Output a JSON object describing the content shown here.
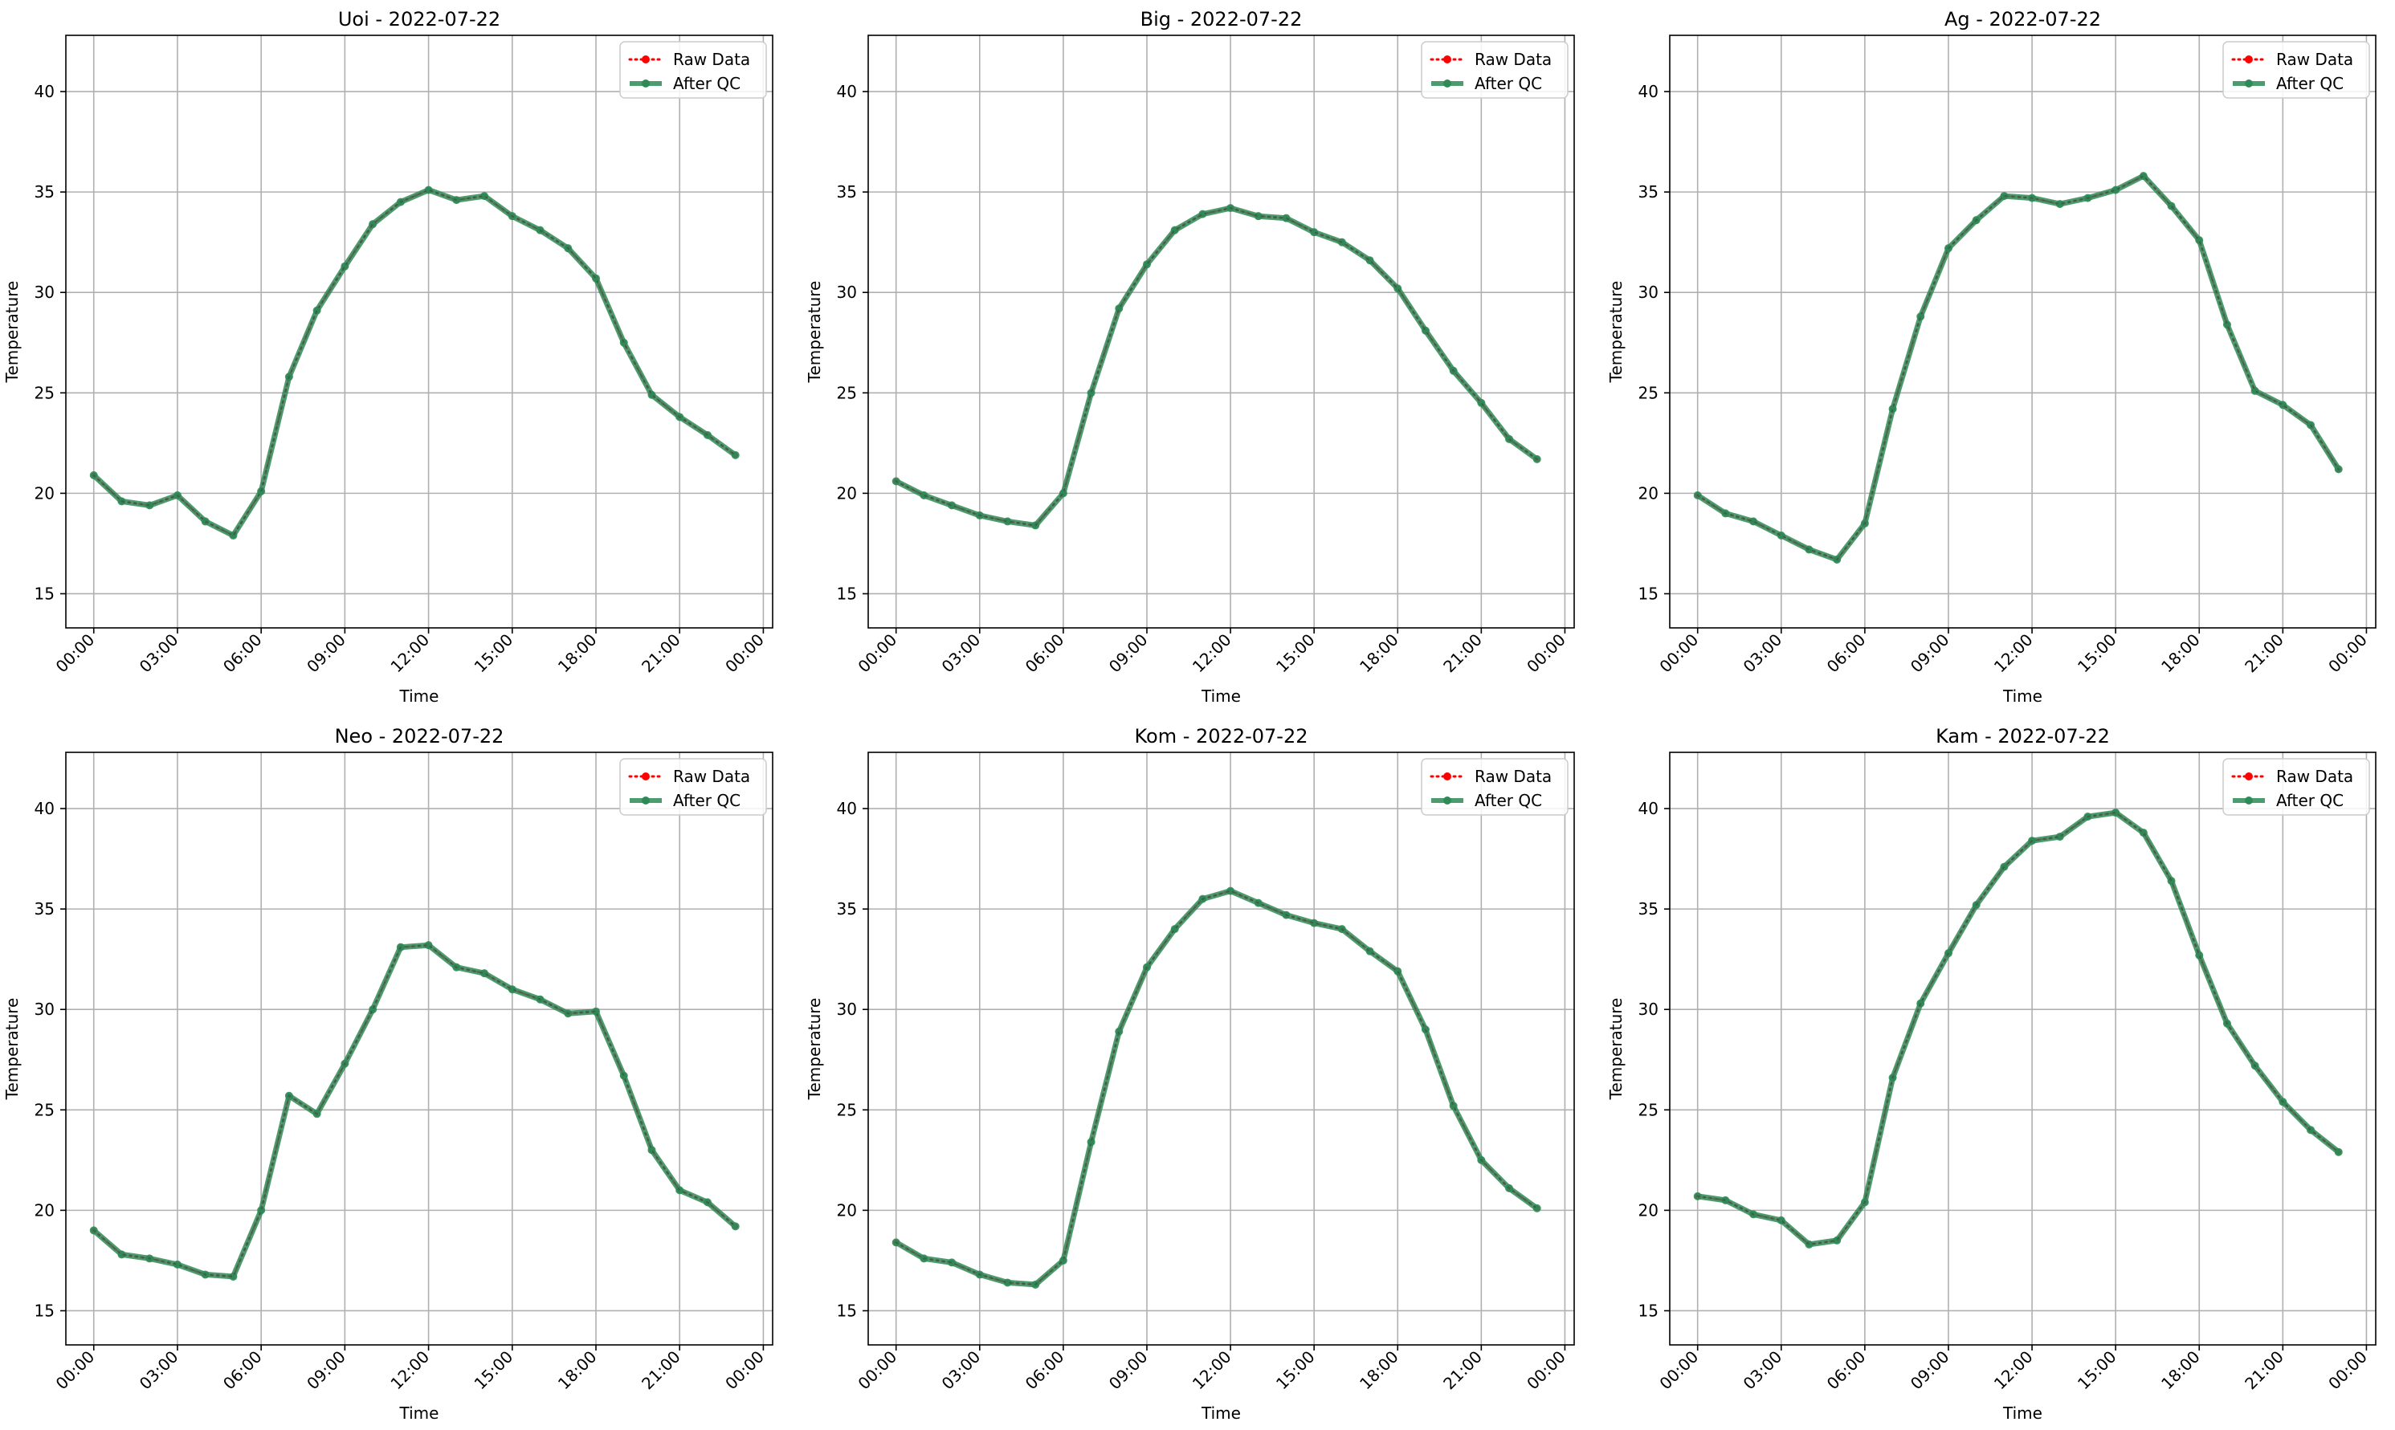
{
  "colors": {
    "raw": "#ff0000",
    "qc": "#2e8b57",
    "grid": "#b0b0b0",
    "axis": "#000000"
  },
  "legend": {
    "raw_label": "Raw Data",
    "qc_label": "After QC",
    "placement": "upper right"
  },
  "chart_data": [
    {
      "type": "line",
      "title": "Uoi - 2022-07-22",
      "xlabel": "Time",
      "ylabel": "Temperature",
      "xlim": [
        "21 Jul 23:00",
        "23 Jul 00:20"
      ],
      "ylim": [
        13.3,
        42.8
      ],
      "grid": true,
      "xticks": [
        "00:00",
        "03:00",
        "06:00",
        "09:00",
        "12:00",
        "15:00",
        "18:00",
        "21:00",
        "00:00"
      ],
      "yticks": [
        15,
        20,
        25,
        30,
        35,
        40
      ],
      "x": [
        "00:00",
        "01:00",
        "02:00",
        "03:00",
        "04:00",
        "05:00",
        "06:00",
        "07:00",
        "08:00",
        "09:00",
        "10:00",
        "11:00",
        "12:00",
        "13:00",
        "14:00",
        "15:00",
        "16:00",
        "17:00",
        "18:00",
        "19:00",
        "20:00",
        "21:00",
        "22:00",
        "23:00"
      ],
      "series": [
        {
          "name": "Raw Data",
          "values": [
            20.9,
            19.6,
            19.4,
            19.9,
            18.6,
            17.9,
            20.1,
            25.8,
            29.1,
            31.3,
            33.4,
            34.5,
            35.1,
            34.6,
            34.8,
            33.8,
            33.1,
            32.2,
            30.7,
            27.5,
            24.9,
            23.8,
            22.9,
            21.9
          ]
        },
        {
          "name": "After QC",
          "values": [
            20.9,
            19.6,
            19.4,
            19.9,
            18.6,
            17.9,
            20.1,
            25.8,
            29.1,
            31.3,
            33.4,
            34.5,
            35.1,
            34.6,
            34.8,
            33.8,
            33.1,
            32.2,
            30.7,
            27.5,
            24.9,
            23.8,
            22.9,
            21.9
          ]
        }
      ]
    },
    {
      "type": "line",
      "title": "Big - 2022-07-22",
      "xlabel": "Time",
      "ylabel": "Temperature",
      "xlim": [
        "21 Jul 23:00",
        "23 Jul 00:20"
      ],
      "ylim": [
        13.3,
        42.8
      ],
      "grid": true,
      "xticks": [
        "00:00",
        "03:00",
        "06:00",
        "09:00",
        "12:00",
        "15:00",
        "18:00",
        "21:00",
        "00:00"
      ],
      "yticks": [
        15,
        20,
        25,
        30,
        35,
        40
      ],
      "x": [
        "00:00",
        "01:00",
        "02:00",
        "03:00",
        "04:00",
        "05:00",
        "06:00",
        "07:00",
        "08:00",
        "09:00",
        "10:00",
        "11:00",
        "12:00",
        "13:00",
        "14:00",
        "15:00",
        "16:00",
        "17:00",
        "18:00",
        "19:00",
        "20:00",
        "21:00",
        "22:00",
        "23:00"
      ],
      "series": [
        {
          "name": "Raw Data",
          "values": [
            20.6,
            19.9,
            19.4,
            18.9,
            18.6,
            18.4,
            20.0,
            25.0,
            29.2,
            31.4,
            33.1,
            33.9,
            34.2,
            33.8,
            33.7,
            33.0,
            32.5,
            31.6,
            30.2,
            28.1,
            26.1,
            24.5,
            22.7,
            21.7
          ]
        },
        {
          "name": "After QC",
          "values": [
            20.6,
            19.9,
            19.4,
            18.9,
            18.6,
            18.4,
            20.0,
            25.0,
            29.2,
            31.4,
            33.1,
            33.9,
            34.2,
            33.8,
            33.7,
            33.0,
            32.5,
            31.6,
            30.2,
            28.1,
            26.1,
            24.5,
            22.7,
            21.7
          ]
        }
      ]
    },
    {
      "type": "line",
      "title": "Ag - 2022-07-22",
      "xlabel": "Time",
      "ylabel": "Temperature",
      "xlim": [
        "21 Jul 23:00",
        "23 Jul 00:20"
      ],
      "ylim": [
        13.3,
        42.8
      ],
      "grid": true,
      "xticks": [
        "00:00",
        "03:00",
        "06:00",
        "09:00",
        "12:00",
        "15:00",
        "18:00",
        "21:00",
        "00:00"
      ],
      "yticks": [
        15,
        20,
        25,
        30,
        35,
        40
      ],
      "x": [
        "00:00",
        "01:00",
        "02:00",
        "03:00",
        "04:00",
        "05:00",
        "06:00",
        "07:00",
        "08:00",
        "09:00",
        "10:00",
        "11:00",
        "12:00",
        "13:00",
        "14:00",
        "15:00",
        "16:00",
        "17:00",
        "18:00",
        "19:00",
        "20:00",
        "21:00",
        "22:00",
        "23:00"
      ],
      "series": [
        {
          "name": "Raw Data",
          "values": [
            19.9,
            19.0,
            18.6,
            17.9,
            17.2,
            16.7,
            18.5,
            24.2,
            28.8,
            32.2,
            33.6,
            34.8,
            34.7,
            34.4,
            34.7,
            35.1,
            35.8,
            34.3,
            32.6,
            28.4,
            25.1,
            24.4,
            23.4,
            21.2
          ]
        },
        {
          "name": "After QC",
          "values": [
            19.9,
            19.0,
            18.6,
            17.9,
            17.2,
            16.7,
            18.5,
            24.2,
            28.8,
            32.2,
            33.6,
            34.8,
            34.7,
            34.4,
            34.7,
            35.1,
            35.8,
            34.3,
            32.6,
            28.4,
            25.1,
            24.4,
            23.4,
            21.2
          ]
        }
      ]
    },
    {
      "type": "line",
      "title": "Neo - 2022-07-22",
      "xlabel": "Time",
      "ylabel": "Temperature",
      "xlim": [
        "21 Jul 23:00",
        "23 Jul 00:20"
      ],
      "ylim": [
        13.3,
        42.8
      ],
      "grid": true,
      "xticks": [
        "00:00",
        "03:00",
        "06:00",
        "09:00",
        "12:00",
        "15:00",
        "18:00",
        "21:00",
        "00:00"
      ],
      "yticks": [
        15,
        20,
        25,
        30,
        35,
        40
      ],
      "x": [
        "00:00",
        "01:00",
        "02:00",
        "03:00",
        "04:00",
        "05:00",
        "06:00",
        "07:00",
        "08:00",
        "09:00",
        "10:00",
        "11:00",
        "12:00",
        "13:00",
        "14:00",
        "15:00",
        "16:00",
        "17:00",
        "18:00",
        "19:00",
        "20:00",
        "21:00",
        "22:00",
        "23:00"
      ],
      "series": [
        {
          "name": "Raw Data",
          "values": [
            19.0,
            17.8,
            17.6,
            17.3,
            16.8,
            16.7,
            20.0,
            25.7,
            24.8,
            27.3,
            30.0,
            33.1,
            33.2,
            32.1,
            31.8,
            31.0,
            30.5,
            29.8,
            29.9,
            26.7,
            23.0,
            21.0,
            20.4,
            19.2
          ]
        },
        {
          "name": "After QC",
          "values": [
            19.0,
            17.8,
            17.6,
            17.3,
            16.8,
            16.7,
            20.0,
            25.7,
            24.8,
            27.3,
            30.0,
            33.1,
            33.2,
            32.1,
            31.8,
            31.0,
            30.5,
            29.8,
            29.9,
            26.7,
            23.0,
            21.0,
            20.4,
            19.2
          ]
        }
      ]
    },
    {
      "type": "line",
      "title": "Kom - 2022-07-22",
      "xlabel": "Time",
      "ylabel": "Temperature",
      "xlim": [
        "21 Jul 23:00",
        "23 Jul 00:20"
      ],
      "ylim": [
        13.3,
        42.8
      ],
      "grid": true,
      "xticks": [
        "00:00",
        "03:00",
        "06:00",
        "09:00",
        "12:00",
        "15:00",
        "18:00",
        "21:00",
        "00:00"
      ],
      "yticks": [
        15,
        20,
        25,
        30,
        35,
        40
      ],
      "x": [
        "00:00",
        "01:00",
        "02:00",
        "03:00",
        "04:00",
        "05:00",
        "06:00",
        "07:00",
        "08:00",
        "09:00",
        "10:00",
        "11:00",
        "12:00",
        "13:00",
        "14:00",
        "15:00",
        "16:00",
        "17:00",
        "18:00",
        "19:00",
        "20:00",
        "21:00",
        "22:00",
        "23:00"
      ],
      "series": [
        {
          "name": "Raw Data",
          "values": [
            18.4,
            17.6,
            17.4,
            16.8,
            16.4,
            16.3,
            17.5,
            23.4,
            28.9,
            32.1,
            34.0,
            35.5,
            35.9,
            35.3,
            34.7,
            34.3,
            34.0,
            32.9,
            31.9,
            29.0,
            25.2,
            22.5,
            21.1,
            20.1
          ]
        },
        {
          "name": "After QC",
          "values": [
            18.4,
            17.6,
            17.4,
            16.8,
            16.4,
            16.3,
            17.5,
            23.4,
            28.9,
            32.1,
            34.0,
            35.5,
            35.9,
            35.3,
            34.7,
            34.3,
            34.0,
            32.9,
            31.9,
            29.0,
            25.2,
            22.5,
            21.1,
            20.1
          ]
        }
      ]
    },
    {
      "type": "line",
      "title": "Kam - 2022-07-22",
      "xlabel": "Time",
      "ylabel": "Temperature",
      "xlim": [
        "21 Jul 23:00",
        "23 Jul 00:20"
      ],
      "ylim": [
        13.3,
        42.8
      ],
      "grid": true,
      "xticks": [
        "00:00",
        "03:00",
        "06:00",
        "09:00",
        "12:00",
        "15:00",
        "18:00",
        "21:00",
        "00:00"
      ],
      "yticks": [
        15,
        20,
        25,
        30,
        35,
        40
      ],
      "x": [
        "00:00",
        "01:00",
        "02:00",
        "03:00",
        "04:00",
        "05:00",
        "06:00",
        "07:00",
        "08:00",
        "09:00",
        "10:00",
        "11:00",
        "12:00",
        "13:00",
        "14:00",
        "15:00",
        "16:00",
        "17:00",
        "18:00",
        "19:00",
        "20:00",
        "21:00",
        "22:00",
        "23:00"
      ],
      "series": [
        {
          "name": "Raw Data",
          "values": [
            20.7,
            20.5,
            19.8,
            19.5,
            18.3,
            18.5,
            20.4,
            26.6,
            30.3,
            32.8,
            35.2,
            37.1,
            38.4,
            38.6,
            39.6,
            39.8,
            38.8,
            36.4,
            32.7,
            29.3,
            27.2,
            25.4,
            24.0,
            22.9
          ]
        },
        {
          "name": "After QC",
          "values": [
            20.7,
            20.5,
            19.8,
            19.5,
            18.3,
            18.5,
            20.4,
            26.6,
            30.3,
            32.8,
            35.2,
            37.1,
            38.4,
            38.6,
            39.6,
            39.8,
            38.8,
            36.4,
            32.7,
            29.3,
            27.2,
            25.4,
            24.0,
            22.9
          ]
        }
      ]
    }
  ]
}
